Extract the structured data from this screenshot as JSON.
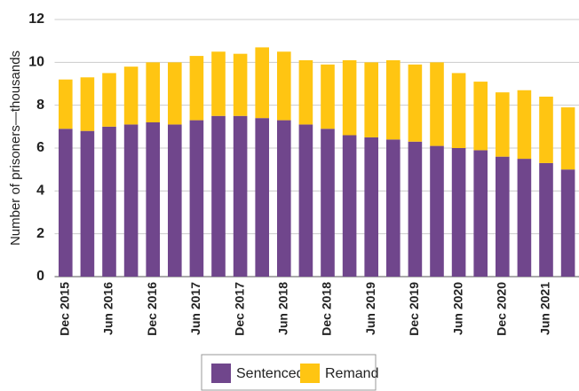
{
  "chart_data": {
    "type": "stacked_bar",
    "y_label": "Number of prisoners—thousands",
    "categories": [
      "Dec 2015",
      null,
      "Jun 2016",
      null,
      "Dec 2016",
      null,
      "Jun 2017",
      null,
      "Dec 2017",
      null,
      "Jun 2018",
      null,
      "Dec 2018",
      null,
      "Jun 2019",
      null,
      "Dec 2019",
      null,
      "Jun 2020",
      null,
      "Dec 2020",
      null,
      "Jun 2021",
      null
    ],
    "series": [
      {
        "name": "Sentenced",
        "color": "#70468c",
        "values": [
          6.9,
          6.8,
          7.0,
          7.1,
          7.2,
          7.1,
          7.3,
          7.5,
          7.5,
          7.4,
          7.3,
          7.1,
          6.9,
          6.6,
          6.5,
          6.4,
          6.3,
          6.1,
          6.0,
          5.9,
          5.6,
          5.5,
          5.3,
          5.0
        ]
      },
      {
        "name": "Remand",
        "color": "#ffc512",
        "values": [
          2.3,
          2.5,
          2.5,
          2.7,
          2.8,
          2.9,
          3.0,
          3.0,
          2.9,
          3.3,
          3.2,
          3.0,
          3.0,
          3.5,
          3.5,
          3.7,
          3.6,
          3.9,
          3.5,
          3.2,
          3.0,
          3.2,
          3.1,
          2.9
        ]
      }
    ],
    "ylim": [
      0,
      12
    ],
    "yticks": [
      0,
      2,
      4,
      6,
      8,
      10,
      12
    ],
    "grid": true,
    "legend": "bottom"
  }
}
